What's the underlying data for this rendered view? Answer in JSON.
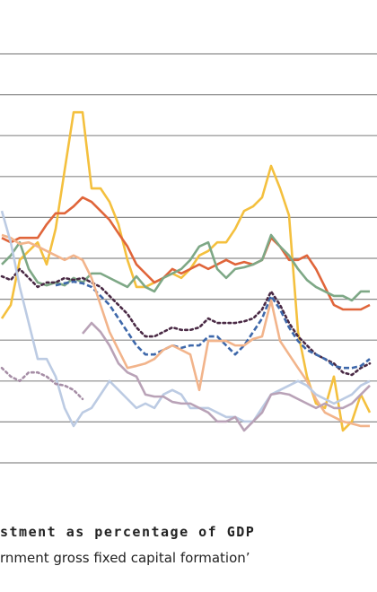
{
  "chart_data": {
    "type": "line",
    "title": "stment as percentage of GDP",
    "subtitle": "rnment gross fixed capital formation’",
    "categories": [
      null,
      null,
      null,
      null,
      null,
      null,
      null,
      null,
      null,
      null,
      null,
      null,
      null,
      null,
      null,
      null,
      null,
      null,
      null,
      null,
      null,
      null,
      null,
      null,
      null,
      null,
      null,
      null,
      null,
      null,
      null,
      null,
      null,
      null,
      null,
      null,
      null,
      null,
      null,
      null,
      null,
      null
    ],
    "ylim": [
      0,
      10
    ],
    "yticks": [
      0,
      1,
      2,
      3,
      4,
      5,
      6,
      7,
      8,
      9,
      10
    ],
    "grid": true,
    "series": [
      {
        "color": "#f4c03e",
        "dash": "solid",
        "values": [
          3.53,
          3.86,
          4.96,
          5.18,
          5.39,
          4.85,
          5.72,
          7.15,
          8.57,
          8.57,
          6.71,
          6.71,
          6.38,
          5.83,
          4.96,
          4.3,
          4.3,
          4.41,
          4.52,
          4.63,
          4.52,
          4.74,
          5.07,
          5.18,
          5.39,
          5.39,
          5.72,
          6.16,
          6.27,
          6.49,
          7.26,
          6.71,
          6.05,
          3.2,
          2.11,
          1.45,
          1.34,
          2.11,
          0.79,
          1.01,
          1.67,
          1.23
        ]
      },
      {
        "color": "#e0653a",
        "dash": "solid",
        "values": [
          5.5,
          5.39,
          5.5,
          5.5,
          5.5,
          5.83,
          6.1,
          6.1,
          6.27,
          6.49,
          6.38,
          6.16,
          5.94,
          5.61,
          5.29,
          4.85,
          4.63,
          4.41,
          4.52,
          4.74,
          4.63,
          4.74,
          4.85,
          4.74,
          4.85,
          4.96,
          4.85,
          4.91,
          4.85,
          4.96,
          5.5,
          5.29,
          4.96,
          4.96,
          5.07,
          4.74,
          4.3,
          3.86,
          3.75,
          3.75,
          3.75,
          3.86
        ]
      },
      {
        "color": "#7ea886",
        "dash": "solid",
        "values": [
          4.85,
          5.07,
          5.39,
          4.74,
          4.41,
          4.34,
          4.41,
          4.34,
          4.52,
          4.41,
          4.63,
          4.63,
          4.52,
          4.41,
          4.3,
          4.56,
          4.3,
          4.19,
          4.52,
          4.63,
          4.74,
          4.96,
          5.29,
          5.39,
          4.74,
          4.52,
          4.74,
          4.78,
          4.85,
          4.96,
          5.57,
          5.29,
          5.07,
          4.74,
          4.47,
          4.3,
          4.19,
          4.08,
          4.08,
          3.97,
          4.19,
          4.19
        ]
      },
      {
        "color": "#4a2a45",
        "dash": "dotted",
        "values": [
          4.56,
          4.47,
          4.74,
          4.52,
          4.3,
          4.41,
          4.41,
          4.52,
          4.47,
          4.52,
          4.41,
          4.3,
          4.08,
          3.86,
          3.64,
          3.31,
          3.09,
          3.09,
          3.2,
          3.31,
          3.25,
          3.25,
          3.31,
          3.53,
          3.42,
          3.42,
          3.42,
          3.46,
          3.53,
          3.75,
          4.19,
          3.86,
          3.42,
          3.09,
          2.87,
          2.65,
          2.54,
          2.43,
          2.21,
          2.15,
          2.32,
          2.43
        ]
      },
      {
        "color": "#3e68aa",
        "dash": "dashed",
        "values": [
          null,
          null,
          null,
          null,
          null,
          null,
          4.34,
          4.39,
          4.43,
          4.39,
          4.3,
          4.08,
          3.86,
          3.53,
          3.2,
          2.87,
          2.65,
          2.65,
          2.76,
          2.87,
          2.81,
          2.87,
          2.87,
          3.09,
          3.09,
          2.87,
          2.65,
          2.87,
          3.2,
          3.53,
          4.08,
          3.75,
          3.31,
          2.98,
          2.76,
          2.65,
          2.54,
          2.37,
          2.32,
          2.32,
          2.37,
          2.54
        ]
      },
      {
        "color": "#f2b48b",
        "dash": "solid",
        "values": [
          5.57,
          5.5,
          5.35,
          5.39,
          5.29,
          5.18,
          5.07,
          4.96,
          5.07,
          4.96,
          4.52,
          3.86,
          3.2,
          2.76,
          2.32,
          2.37,
          2.43,
          2.54,
          2.76,
          2.87,
          2.76,
          2.65,
          1.78,
          2.98,
          2.98,
          2.98,
          2.87,
          2.87,
          3.03,
          3.09,
          3.97,
          2.98,
          2.65,
          2.32,
          2.0,
          1.56,
          1.23,
          1.12,
          1.01,
          0.96,
          0.9,
          0.9
        ]
      },
      {
        "color": "#bccbe3",
        "dash": "solid",
        "values": [
          6.16,
          5.39,
          4.3,
          3.42,
          2.54,
          2.54,
          2.11,
          1.34,
          0.9,
          1.23,
          1.34,
          1.67,
          2.0,
          1.78,
          1.56,
          1.34,
          1.45,
          1.34,
          1.67,
          1.78,
          1.67,
          1.34,
          1.34,
          1.34,
          1.23,
          1.12,
          1.12,
          1.01,
          1.01,
          1.34,
          1.67,
          1.78,
          1.89,
          2.0,
          1.89,
          1.67,
          1.56,
          1.45,
          1.56,
          1.67,
          1.89,
          2.0
        ]
      },
      {
        "color": "#b9a2b7",
        "dash": "solid",
        "values": [
          null,
          null,
          null,
          null,
          null,
          null,
          null,
          null,
          null,
          3.16,
          3.42,
          3.2,
          2.87,
          2.43,
          2.21,
          2.11,
          1.67,
          1.62,
          1.62,
          1.49,
          1.45,
          1.45,
          1.34,
          1.23,
          1.01,
          1.01,
          1.12,
          0.79,
          1.01,
          1.23,
          1.67,
          1.71,
          1.67,
          1.56,
          1.45,
          1.34,
          1.45,
          1.34,
          1.34,
          1.45,
          1.67,
          1.89
        ]
      },
      {
        "color": "#a68ea6",
        "dash": "dotted",
        "values": [
          2.32,
          2.11,
          2.0,
          2.21,
          2.21,
          2.11,
          1.93,
          1.89,
          1.78,
          1.56,
          null,
          null,
          null,
          null,
          null,
          null,
          null,
          null,
          null,
          null,
          null,
          null,
          null,
          null,
          null,
          null,
          null,
          null,
          null,
          null,
          null,
          null,
          null,
          null,
          null,
          null,
          null,
          null,
          null,
          null,
          null,
          null
        ]
      }
    ]
  }
}
